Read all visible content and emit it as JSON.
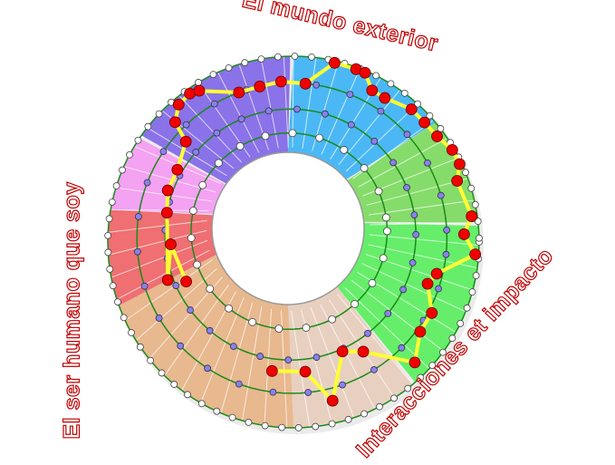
{
  "labels": {
    "top": "El mundo exterior",
    "left": "El ser humano que soy",
    "right": "Interacciones et impacto"
  },
  "colors": {
    "sectors": [
      "#4bb8f5",
      "#86dc6a",
      "#66ee6a",
      "#e8d0c0",
      "#e8b88f",
      "#ef6f72",
      "#f4a2f2",
      "#8a72e8"
    ],
    "ring_line": "#1a8a1a",
    "path": "#ffff33",
    "path_node": "#ee0000",
    "inner_node": "#8a80ee",
    "outer_node": "#ffffff"
  }
}
